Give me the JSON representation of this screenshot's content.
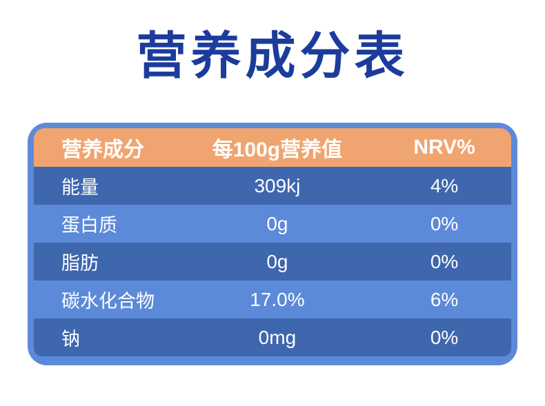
{
  "page": {
    "title": "营养成分表"
  },
  "colors": {
    "title_text": "#1c3c9c",
    "panel_background": "#5c8ad9",
    "header_background": "#f0a470",
    "dark_row_background": "#3e67ae",
    "row_text": "#ffffff"
  },
  "table": {
    "header": {
      "component": "营养成分",
      "per_100g": "每100g营养值",
      "nrv": "NRV%"
    },
    "rows": [
      {
        "name": "能量",
        "value": "309kj",
        "nrv": "4%"
      },
      {
        "name": "蛋白质",
        "value": "0g",
        "nrv": "0%"
      },
      {
        "name": "脂肪",
        "value": "0g",
        "nrv": "0%"
      },
      {
        "name": "碳水化合物",
        "value": "17.0%",
        "nrv": "6%"
      },
      {
        "name": "钠",
        "value": "0mg",
        "nrv": "0%"
      }
    ]
  }
}
